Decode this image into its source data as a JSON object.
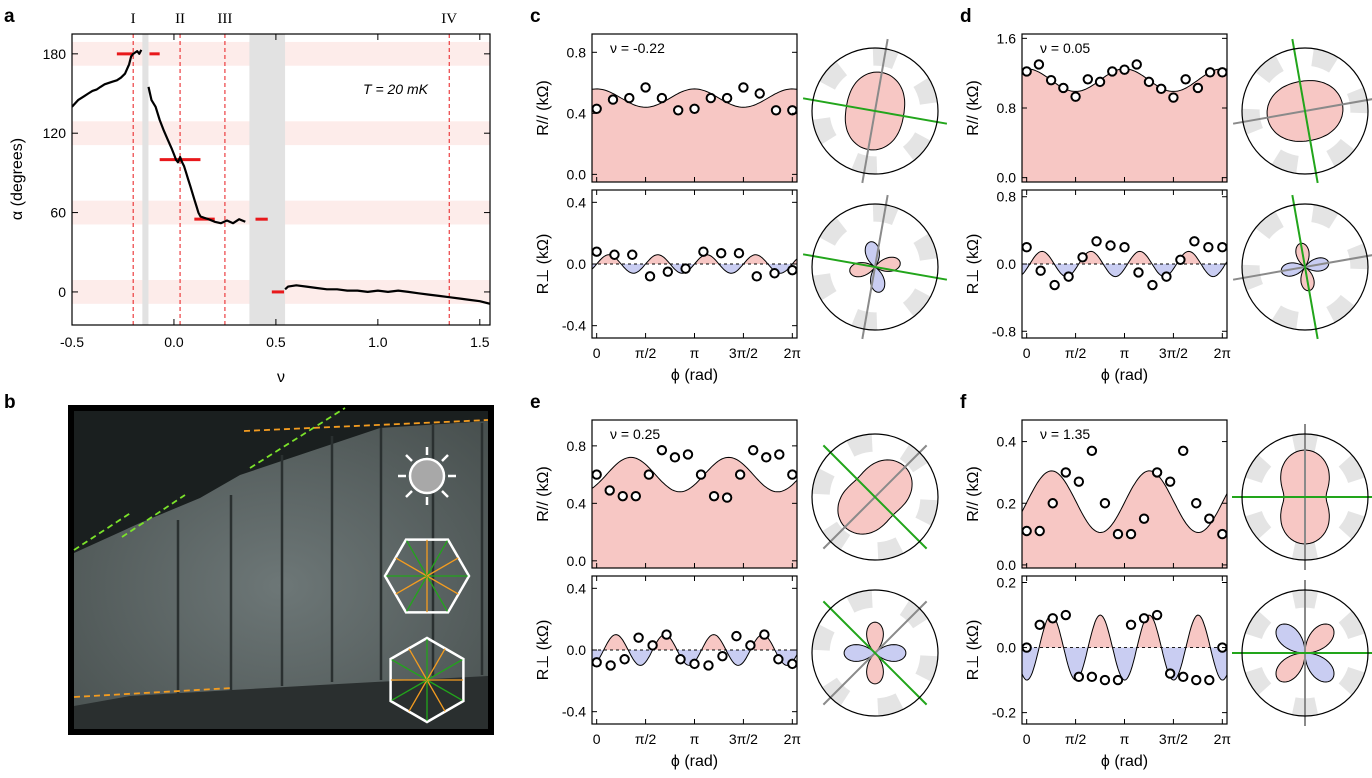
{
  "panel_labels": [
    "a",
    "b",
    "c",
    "d",
    "e",
    "f"
  ],
  "chart_data": [
    {
      "id": "a",
      "type": "line",
      "xlabel": "ν",
      "ylabel": "α (degrees)",
      "xlim": [
        -0.5,
        1.55
      ],
      "ylim": [
        -25,
        195
      ],
      "xticks": [
        -0.5,
        0.0,
        0.5,
        1.0,
        1.5
      ],
      "xtick_labels": [
        "-0.5",
        "0.0",
        "0.5",
        "1.0",
        "1.5"
      ],
      "yticks": [
        0,
        60,
        120,
        180
      ],
      "ytick_labels": [
        "0",
        "60",
        "120",
        "180"
      ],
      "annotation": "T = 20 mK",
      "markers": [
        {
          "x": -0.2,
          "label": "I"
        },
        {
          "x": 0.03,
          "label": "II"
        },
        {
          "x": 0.25,
          "label": "III"
        },
        {
          "x": 1.35,
          "label": "IV"
        }
      ],
      "bands": [
        0,
        60,
        120,
        180
      ],
      "gray_regions": [
        [
          -0.155,
          -0.125
        ],
        [
          0.37,
          0.545
        ]
      ],
      "red_bars": [
        {
          "x": [
            -0.28,
            -0.2
          ],
          "y": 180
        },
        {
          "x": [
            -0.12,
            -0.07
          ],
          "y": 180
        },
        {
          "x": [
            -0.07,
            0.13
          ],
          "y": 100
        },
        {
          "x": [
            0.1,
            0.2
          ],
          "y": 55
        },
        {
          "x": [
            0.4,
            0.46
          ],
          "y": 55
        },
        {
          "x": [
            0.48,
            0.54
          ],
          "y": 0
        }
      ],
      "series": [
        {
          "name": "left",
          "x": [
            -0.5,
            -0.47,
            -0.44,
            -0.42,
            -0.4,
            -0.38,
            -0.36,
            -0.34,
            -0.32,
            -0.3,
            -0.28,
            -0.26,
            -0.24,
            -0.22,
            -0.21,
            -0.2,
            -0.19,
            -0.18,
            -0.17,
            -0.16
          ],
          "y": [
            140,
            145,
            148,
            150,
            152,
            153,
            155,
            157,
            158,
            159,
            160,
            162,
            165,
            172,
            178,
            180,
            181,
            182,
            180,
            183
          ]
        },
        {
          "name": "middle",
          "x": [
            -0.125,
            -0.11,
            -0.09,
            -0.07,
            -0.05,
            -0.03,
            -0.01,
            0.0,
            0.01,
            0.02,
            0.03,
            0.04,
            0.05,
            0.06,
            0.07,
            0.08,
            0.09,
            0.1,
            0.11,
            0.12,
            0.13,
            0.15,
            0.17,
            0.2,
            0.23,
            0.26,
            0.29,
            0.32,
            0.35
          ],
          "y": [
            155,
            145,
            140,
            130,
            122,
            115,
            108,
            104,
            100,
            98,
            102,
            98,
            95,
            90,
            85,
            80,
            75,
            70,
            65,
            60,
            57,
            56,
            55,
            53,
            52,
            54,
            52,
            55,
            53
          ]
        },
        {
          "name": "right",
          "x": [
            0.545,
            0.56,
            0.6,
            0.65,
            0.7,
            0.75,
            0.8,
            0.85,
            0.9,
            0.95,
            1.0,
            1.05,
            1.1,
            1.15,
            1.2,
            1.25,
            1.3,
            1.35,
            1.4,
            1.45,
            1.5,
            1.55
          ],
          "y": [
            2,
            4,
            5,
            4,
            3,
            2,
            2,
            1,
            1,
            0,
            1,
            0,
            1,
            0,
            -1,
            -2,
            -3,
            -4,
            -5,
            -6,
            -7,
            -9
          ]
        }
      ]
    },
    {
      "id": "b",
      "type": "image",
      "description_icons": [
        "sun-icon",
        "hexagon-lattice-icon",
        "hexagon-lattice-icon"
      ]
    },
    {
      "id": "c",
      "type": "line",
      "nu_label": "ν = -0.22",
      "xlabel": "ϕ (rad)",
      "xticks": [
        "0",
        "π/2",
        "π",
        "3π/2",
        "2π"
      ],
      "top": {
        "ylabel": "R// (kΩ)",
        "ylim": [
          -0.05,
          0.92
        ],
        "yticks": [
          0.0,
          0.4,
          0.8
        ],
        "ytick_labels": [
          "0.0",
          "0.4",
          "0.8"
        ],
        "fit": {
          "offset": 0.5,
          "amp": 0.06,
          "phase": 0.0,
          "harm": 2
        },
        "points": [
          0.43,
          0.49,
          0.5,
          0.57,
          0.5,
          0.42,
          0.43,
          0.5,
          0.5,
          0.57,
          0.53,
          0.42,
          0.42
        ]
      },
      "bottom": {
        "ylabel": "R⊥ (kΩ)",
        "ylim": [
          -0.48,
          0.48
        ],
        "yticks": [
          -0.4,
          0.0,
          0.4
        ],
        "ytick_labels": [
          "-0.4",
          "0.0",
          "0.4"
        ],
        "fit": {
          "amp": 0.06,
          "phase": 0.0
        },
        "points": [
          0.08,
          0.06,
          0.06,
          -0.08,
          -0.05,
          -0.03,
          0.08,
          0.07,
          0.07,
          -0.08,
          -0.06,
          -0.04
        ]
      },
      "polar": {
        "anisotropy": 0.15,
        "angle_deg": 80,
        "lobe_angle_deg": 10
      }
    },
    {
      "id": "d",
      "type": "line",
      "nu_label": "ν = 0.05",
      "xlabel": "ϕ (rad)",
      "xticks": [
        "0",
        "π/2",
        "π",
        "3π/2",
        "2π"
      ],
      "top": {
        "ylabel": "R// (kΩ)",
        "ylim": [
          -0.05,
          1.65
        ],
        "yticks": [
          0.0,
          0.8,
          1.6
        ],
        "ytick_labels": [
          "0.0",
          "0.8",
          "1.6"
        ],
        "fit": {
          "offset": 1.12,
          "amp": 0.13,
          "phase": 0.0,
          "harm": 2
        },
        "points": [
          1.22,
          1.3,
          1.12,
          1.03,
          0.93,
          1.13,
          1.1,
          1.22,
          1.24,
          1.3,
          1.1,
          1.02,
          0.92,
          1.13,
          1.03,
          1.21,
          1.21
        ]
      },
      "bottom": {
        "ylabel": "R⊥ (kΩ)",
        "ylim": [
          -0.88,
          0.88
        ],
        "yticks": [
          -0.8,
          0.0,
          0.8
        ],
        "ytick_labels": [
          "-0.8",
          "0.0",
          "0.8"
        ],
        "fit": {
          "amp": 0.15,
          "phase": 0.4
        },
        "points": [
          0.2,
          -0.08,
          -0.25,
          -0.15,
          0.08,
          0.27,
          0.22,
          0.2,
          -0.1,
          -0.25,
          -0.15,
          0.05,
          0.27,
          0.2,
          0.2
        ]
      },
      "polar": {
        "anisotropy": 0.12,
        "angle_deg": 10,
        "lobe_angle_deg": 100
      }
    },
    {
      "id": "e",
      "type": "line",
      "nu_label": "ν = 0.25",
      "xlabel": "ϕ (rad)",
      "xticks": [
        "0",
        "π/2",
        "π",
        "3π/2",
        "2π"
      ],
      "top": {
        "ylabel": "R// (kΩ)",
        "ylim": [
          -0.05,
          0.98
        ],
        "yticks": [
          0.0,
          0.4,
          0.8
        ],
        "ytick_labels": [
          "0.0",
          "0.4",
          "0.8"
        ],
        "fit": {
          "offset": 0.6,
          "amp": 0.12,
          "phase": 2.2,
          "harm": 2
        },
        "points": [
          0.6,
          0.49,
          0.45,
          0.45,
          0.6,
          0.77,
          0.72,
          0.74,
          0.6,
          0.45,
          0.44,
          0.6,
          0.77,
          0.72,
          0.74,
          0.6
        ]
      },
      "bottom": {
        "ylabel": "R⊥ (kΩ)",
        "ylim": [
          -0.48,
          0.48
        ],
        "yticks": [
          -0.4,
          0.0,
          0.4
        ],
        "ytick_labels": [
          "-0.4",
          "0.0",
          "0.4"
        ],
        "fit": {
          "amp": 0.1,
          "phase": 0.9
        },
        "points": [
          -0.08,
          -0.1,
          -0.06,
          0.08,
          0.03,
          0.1,
          -0.06,
          -0.09,
          -0.1,
          -0.04,
          0.09,
          0.03,
          0.1,
          -0.06,
          -0.09
        ]
      },
      "polar": {
        "anisotropy": 0.25,
        "angle_deg": 45,
        "lobe_angle_deg": 90
      }
    },
    {
      "id": "f",
      "type": "line",
      "nu_label": "ν = 1.35",
      "xlabel": "ϕ (rad)",
      "xticks": [
        "0",
        "π/2",
        "π",
        "3π/2",
        "2π"
      ],
      "top": {
        "ylabel": "R// (kΩ)",
        "ylim": [
          -0.01,
          0.47
        ],
        "yticks": [
          0.0,
          0.2,
          0.4
        ],
        "ytick_labels": [
          "0.0",
          "0.2",
          "0.4"
        ],
        "fit": {
          "offset": 0.205,
          "amp": 0.1,
          "phase": 1.6,
          "harm": 2
        },
        "points": [
          0.11,
          0.11,
          0.2,
          0.3,
          0.27,
          0.37,
          0.2,
          0.1,
          0.1,
          0.15,
          0.3,
          0.27,
          0.37,
          0.2,
          0.15,
          0.1
        ]
      },
      "bottom": {
        "ylabel": "R⊥ (kΩ)",
        "ylim": [
          -0.235,
          0.22
        ],
        "yticks": [
          -0.2,
          0.0,
          0.2
        ],
        "ytick_labels": [
          "-0.2",
          "0.0",
          "0.2"
        ],
        "fit": {
          "amp": 0.1,
          "phase": 1.6
        },
        "points": [
          0.0,
          0.07,
          0.09,
          0.1,
          -0.09,
          -0.09,
          -0.1,
          -0.1,
          0.07,
          0.09,
          0.1,
          -0.08,
          -0.09,
          -0.1,
          -0.1,
          0.0
        ]
      },
      "polar": {
        "anisotropy": 0.38,
        "angle_deg": 90,
        "lobe_angle_deg": 45
      }
    }
  ],
  "colors": {
    "red_fill": "#f7c7c4",
    "blue_fill": "#c9cdf2",
    "band": "#fdecea",
    "gray_region": "#e2e2e2",
    "marker_red": "#e8181b",
    "green_axis": "#22a51b",
    "gray_axis": "#8a8a8a",
    "orange_dash": "#f39c20",
    "lime_dash": "#7be32a"
  }
}
